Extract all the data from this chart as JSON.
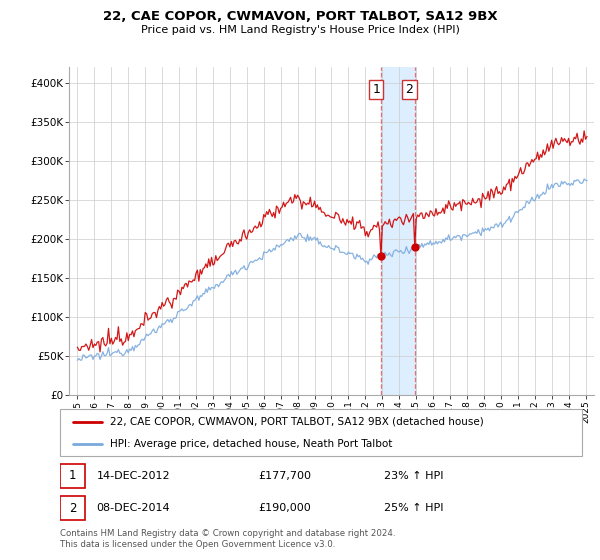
{
  "title": "22, CAE COPOR, CWMAVON, PORT TALBOT, SA12 9BX",
  "subtitle": "Price paid vs. HM Land Registry's House Price Index (HPI)",
  "legend_line1": "22, CAE COPOR, CWMAVON, PORT TALBOT, SA12 9BX (detached house)",
  "legend_line2": "HPI: Average price, detached house, Neath Port Talbot",
  "sale1_date": "14-DEC-2012",
  "sale1_price": "£177,700",
  "sale1_hpi": "23% ↑ HPI",
  "sale2_date": "08-DEC-2014",
  "sale2_price": "£190,000",
  "sale2_hpi": "25% ↑ HPI",
  "footer": "Contains HM Land Registry data © Crown copyright and database right 2024.\nThis data is licensed under the Open Government Licence v3.0.",
  "red_color": "#cc0000",
  "blue_color": "#7aaadd",
  "highlight_color": "#ddeeff",
  "sale1_x": 2012.95,
  "sale2_x": 2014.92,
  "ylim_min": 0,
  "ylim_max": 420000,
  "xlim_min": 1994.5,
  "xlim_max": 2025.5
}
